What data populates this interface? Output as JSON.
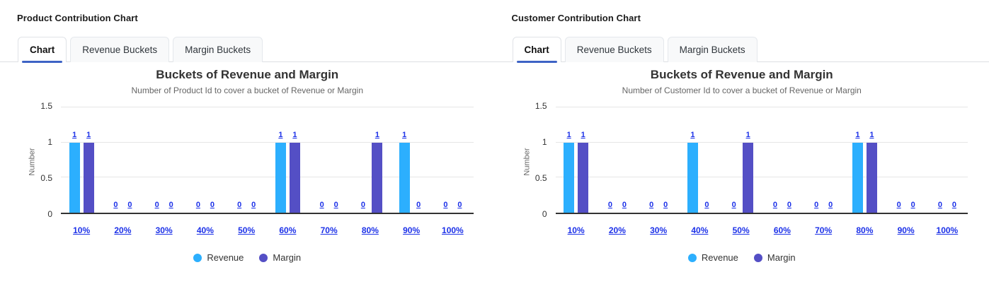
{
  "colors": {
    "revenue": "#2CAFFE",
    "margin": "#544FC5",
    "link": "#1c31e8",
    "tab_underline": "#3e63c5",
    "gridline": "#e6e6e6",
    "axis_line": "#333333"
  },
  "panels": [
    {
      "heading": "Product Contribution Chart",
      "tabs": [
        {
          "label": "Chart",
          "active": true
        },
        {
          "label": "Revenue Buckets",
          "active": false
        },
        {
          "label": "Margin Buckets",
          "active": false
        }
      ]
    },
    {
      "heading": "Customer Contribution Chart",
      "tabs": [
        {
          "label": "Chart",
          "active": true
        },
        {
          "label": "Revenue Buckets",
          "active": false
        },
        {
          "label": "Margin Buckets",
          "active": false
        }
      ]
    }
  ],
  "chart_data": [
    {
      "type": "bar",
      "title": "Buckets of Revenue and Margin",
      "subtitle": "Number of Product Id to cover a bucket of Revenue or Margin",
      "xlabel": "",
      "ylabel": "Number",
      "ylim": [
        0,
        1.5
      ],
      "yticks": [
        0,
        0.5,
        1,
        1.5
      ],
      "grid": true,
      "legend_position": "bottom",
      "categories": [
        "10%",
        "20%",
        "30%",
        "40%",
        "50%",
        "60%",
        "70%",
        "80%",
        "90%",
        "100%"
      ],
      "series": [
        {
          "name": "Revenue",
          "color": "#2CAFFE",
          "values": [
            1,
            0,
            0,
            0,
            0,
            1,
            0,
            0,
            1,
            0
          ]
        },
        {
          "name": "Margin",
          "color": "#544FC5",
          "values": [
            1,
            0,
            0,
            0,
            0,
            1,
            0,
            1,
            0,
            0
          ]
        }
      ]
    },
    {
      "type": "bar",
      "title": "Buckets of Revenue and Margin",
      "subtitle": "Number of Customer Id to cover a bucket of Revenue or Margin",
      "xlabel": "",
      "ylabel": "Number",
      "ylim": [
        0,
        1.5
      ],
      "yticks": [
        0,
        0.5,
        1,
        1.5
      ],
      "grid": true,
      "legend_position": "bottom",
      "categories": [
        "10%",
        "20%",
        "30%",
        "40%",
        "50%",
        "60%",
        "70%",
        "80%",
        "90%",
        "100%"
      ],
      "series": [
        {
          "name": "Revenue",
          "color": "#2CAFFE",
          "values": [
            1,
            0,
            0,
            1,
            0,
            0,
            0,
            1,
            0,
            0
          ]
        },
        {
          "name": "Margin",
          "color": "#544FC5",
          "values": [
            1,
            0,
            0,
            0,
            1,
            0,
            0,
            1,
            0,
            0
          ]
        }
      ]
    }
  ]
}
